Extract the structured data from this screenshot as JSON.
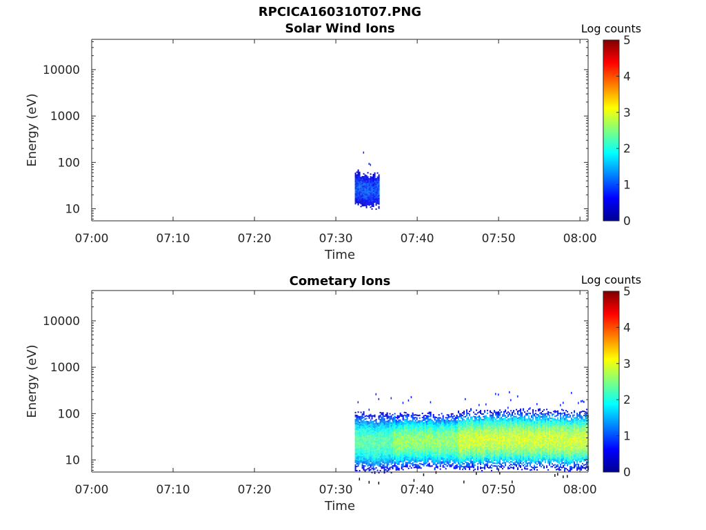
{
  "figure": {
    "filename": "RPCICA160310T07.PNG",
    "colorbar_label": "Log counts",
    "colorbar_ticks": [
      "0",
      "1",
      "2",
      "3",
      "4",
      "5"
    ],
    "colorscale": [
      "#00008F",
      "#0000FF",
      "#00FFFF",
      "#FFFF00",
      "#FF0000",
      "#800000"
    ]
  },
  "chart_data": [
    {
      "type": "heatmap",
      "title": "Solar Wind Ions",
      "xlabel": "Time",
      "ylabel": "Energy (eV)",
      "xticks": [
        "07:00",
        "07:10",
        "07:20",
        "07:30",
        "07:40",
        "07:50",
        "08:00"
      ],
      "yticks": [
        "10",
        "100",
        "1000",
        "10000"
      ],
      "yscale": "log",
      "xlim": [
        "07:00",
        "08:01"
      ],
      "ylim": [
        5.5,
        45000
      ],
      "clim": [
        0,
        5
      ],
      "grid": false,
      "bands": [
        {
          "t_start": "07:32:20",
          "t_end": "07:35:20",
          "e_center": 27,
          "log_counts": 1.0,
          "spread": 0.1
        }
      ]
    },
    {
      "type": "heatmap",
      "title": "Cometary Ions",
      "xlabel": "Time",
      "ylabel": "Energy (eV)",
      "xticks": [
        "07:00",
        "07:10",
        "07:20",
        "07:30",
        "07:40",
        "07:50",
        "08:00"
      ],
      "yticks": [
        "10",
        "100",
        "1000",
        "10000"
      ],
      "yscale": "log",
      "xlim": [
        "07:00",
        "08:01"
      ],
      "ylim": [
        5.5,
        45000
      ],
      "clim": [
        0,
        5
      ],
      "grid": false,
      "bands": [
        {
          "t_start": "07:32:20",
          "t_end": "07:37:00",
          "e_center": 25,
          "log_counts": 2.3,
          "spread": 0.16
        },
        {
          "t_start": "07:37:00",
          "t_end": "07:45:00",
          "e_center": 26,
          "log_counts": 2.6,
          "spread": 0.15
        },
        {
          "t_start": "07:45:00",
          "t_end": "08:01:00",
          "e_center": 28,
          "log_counts": 2.9,
          "spread": 0.16
        }
      ]
    }
  ]
}
